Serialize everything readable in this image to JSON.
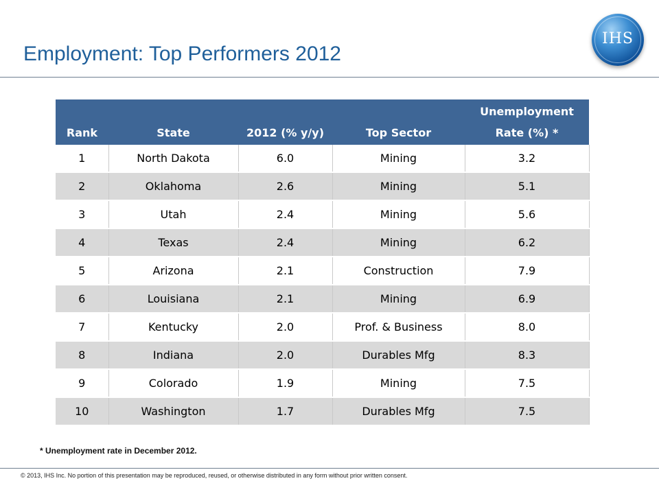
{
  "slide": {
    "title": "Employment: Top Performers 2012",
    "logo_text": "IHS",
    "footnote": "* Unemployment rate in December 2012.",
    "copyright": "© 2013, IHS Inc. No portion of this presentation may be reproduced, reused, or otherwise distributed in any form without prior written consent."
  },
  "table": {
    "headers": [
      "Rank",
      "State",
      "2012 (% y/y)",
      "Top Sector",
      "Unemployment Rate (%) *"
    ],
    "rows": [
      [
        "1",
        "North Dakota",
        "6.0",
        "Mining",
        "3.2"
      ],
      [
        "2",
        "Oklahoma",
        "2.6",
        "Mining",
        "5.1"
      ],
      [
        "3",
        "Utah",
        "2.4",
        "Mining",
        "5.6"
      ],
      [
        "4",
        "Texas",
        "2.4",
        "Mining",
        "6.2"
      ],
      [
        "5",
        "Arizona",
        "2.1",
        "Construction",
        "7.9"
      ],
      [
        "6",
        "Louisiana",
        "2.1",
        "Mining",
        "6.9"
      ],
      [
        "7",
        "Kentucky",
        "2.0",
        "Prof. & Business",
        "8.0"
      ],
      [
        "8",
        "Indiana",
        "2.0",
        "Durables Mfg",
        "8.3"
      ],
      [
        "9",
        "Colorado",
        "1.9",
        "Mining",
        "7.5"
      ],
      [
        "10",
        "Washington",
        "1.7",
        "Durables Mfg",
        "7.5"
      ]
    ]
  },
  "colors": {
    "header_fill": "#3e6696",
    "title_text": "#1f5f9a",
    "alt_row_fill": "#d9d9d9"
  }
}
